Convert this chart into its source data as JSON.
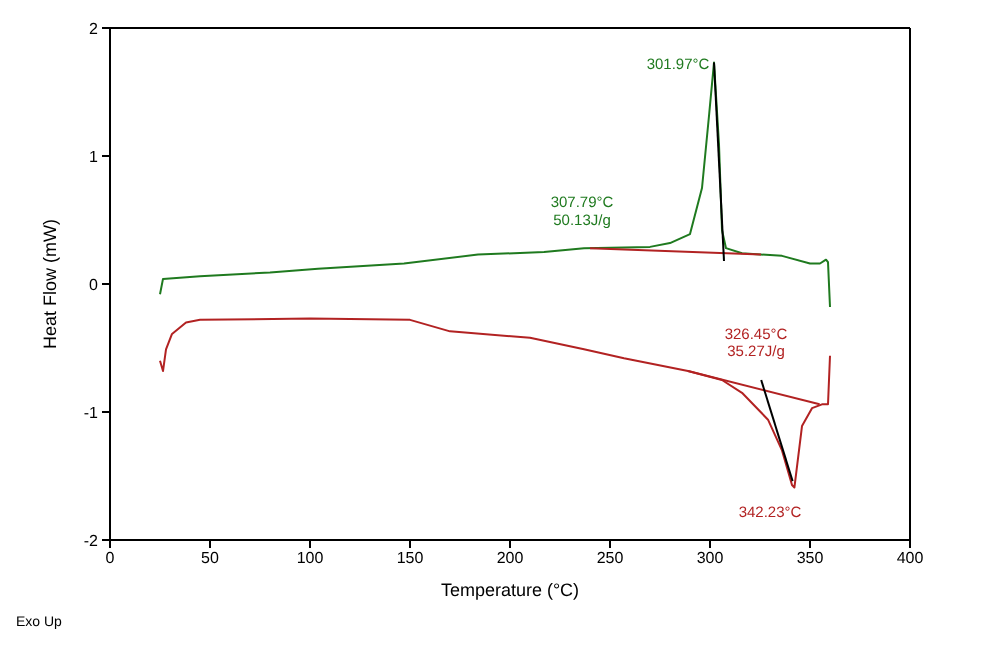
{
  "chart_data": {
    "type": "line",
    "xlabel": "Temperature (°C)",
    "ylabel": "Heat Flow (mW)",
    "xlim": [
      0,
      400
    ],
    "xticks": [
      0,
      50,
      100,
      150,
      200,
      250,
      300,
      350,
      400
    ],
    "ylim": [
      -2,
      2
    ],
    "yticks": [
      -2,
      -1,
      0,
      1,
      2
    ],
    "marker": "none",
    "line_style": "solid",
    "series": [
      {
        "color": "#1f7a1f",
        "x": [
          25,
          26.5,
          45,
          80,
          104,
          147,
          184,
          217,
          237,
          270,
          280,
          290,
          296,
          299.6,
          302,
          304.5,
          306,
          308,
          316,
          336,
          350,
          355,
          358,
          359,
          360
        ],
        "values": [
          -0.08,
          0.04,
          0.06,
          0.09,
          0.12,
          0.16,
          0.23,
          0.25,
          0.28,
          0.29,
          0.32,
          0.39,
          0.75,
          1.33,
          1.73,
          1.09,
          0.42,
          0.28,
          0.24,
          0.22,
          0.16,
          0.16,
          0.19,
          0.17,
          -0.18
        ]
      },
      {
        "color": "#b22222",
        "x": [
          25,
          26.5,
          28,
          31,
          38,
          45,
          100,
          150,
          170,
          210,
          237,
          257,
          289,
          306,
          316,
          329,
          336,
          341,
          342.2,
          346,
          351,
          356,
          359,
          360
        ],
        "values": [
          -0.6,
          -0.68,
          -0.51,
          -0.39,
          -0.3,
          -0.28,
          -0.27,
          -0.28,
          -0.37,
          -0.42,
          -0.51,
          -0.58,
          -0.68,
          -0.75,
          -0.85,
          -1.06,
          -1.3,
          -1.57,
          -1.59,
          -1.11,
          -0.97,
          -0.94,
          -0.94,
          -0.56
        ]
      },
      {
        "color": "#b22222",
        "x": [
          240,
          325.5
        ],
        "values": [
          0.28,
          0.23
        ]
      },
      {
        "color": "#b22222",
        "x": [
          289,
          354.8
        ],
        "values": [
          -0.68,
          -0.94
        ]
      },
      {
        "color": "#000000",
        "x": [
          302,
          307
        ],
        "values": [
          1.73,
          0.18
        ]
      },
      {
        "color": "#000000",
        "x": [
          325.6,
          341.3
        ],
        "values": [
          -0.75,
          -1.54
        ]
      }
    ],
    "annotations": [
      "301.97°C",
      "307.79°C",
      "50.13J/g",
      "326.45°C",
      "35.27J/g",
      "342.23°C",
      "Exo Up"
    ]
  }
}
